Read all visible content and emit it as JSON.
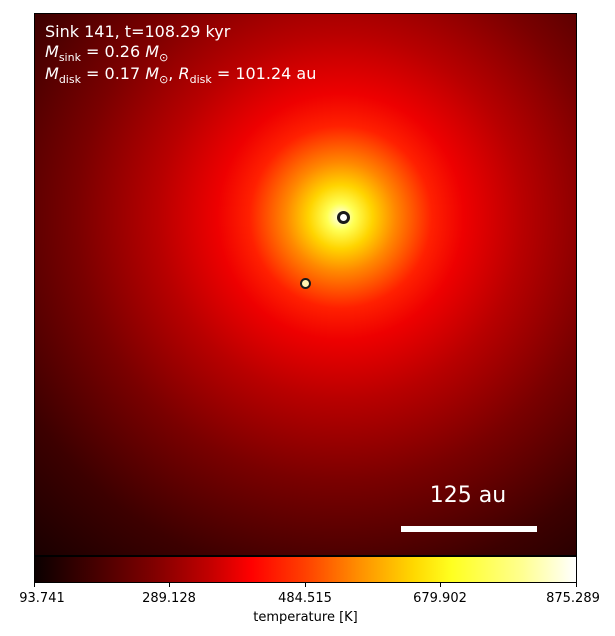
{
  "title": "Sink 141, t=108.29 kyr",
  "mass_sink": {
    "symbol": "M",
    "subscript": "sink",
    "value": "= 0.26",
    "unit_symbol": "M",
    "unit_subscript": "⊙"
  },
  "mass_disk": {
    "symbol": "M",
    "subscript": "disk",
    "value": "= 0.17",
    "unit_symbol": "M",
    "unit_subscript": "⊙",
    "separator": ", ",
    "radius_symbol": "R",
    "radius_subscript": "disk",
    "radius_value": "= 101.24",
    "radius_unit": "au"
  },
  "scale_bar": {
    "label": "125 au"
  },
  "colorbar": {
    "label": "temperature [K]",
    "ticks": [
      "93.741",
      "289.128",
      "484.515",
      "679.902",
      "875.289"
    ],
    "colors": {
      "low": "#0b0000",
      "mid": "#ff0000",
      "high": "#ffffff"
    }
  },
  "markers": {
    "primary_icon": "sink-ring-icon",
    "secondary_icon": "sink-ring-icon"
  }
}
